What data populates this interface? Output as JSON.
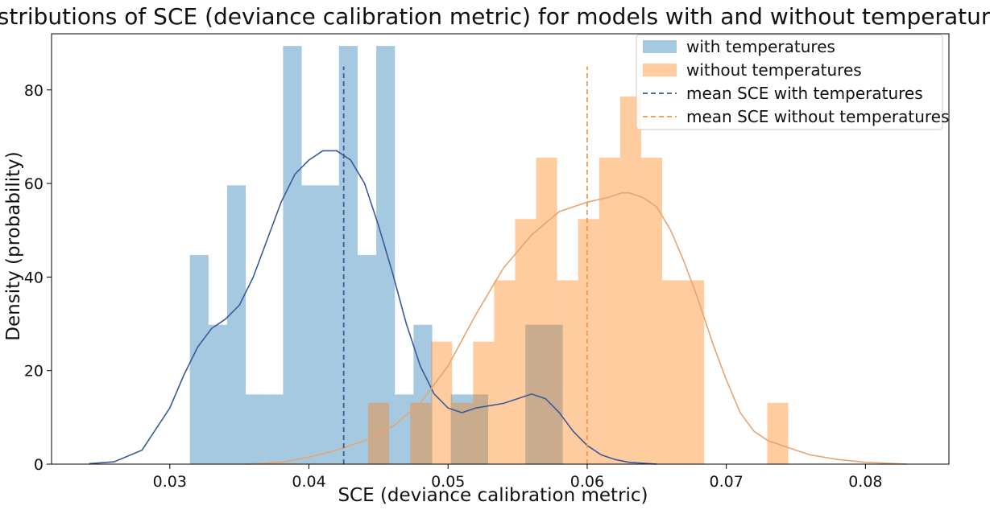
{
  "chart_data": {
    "type": "bar",
    "title": "Distributions of SCE (deviance calibration metric) for models with and without temperatures",
    "xlabel": "SCE (deviance calibration metric)",
    "ylabel": "Density (probability)",
    "xlim": [
      0.0215,
      0.086
    ],
    "ylim": [
      0,
      92
    ],
    "xticks": [
      0.03,
      0.04,
      0.05,
      0.06,
      0.07,
      0.08
    ],
    "xtick_labels": [
      "0.03",
      "0.04",
      "0.05",
      "0.06",
      "0.07",
      "0.08"
    ],
    "yticks": [
      0,
      20,
      40,
      60,
      80
    ],
    "ytick_labels": [
      "0",
      "20",
      "40",
      "60",
      "80"
    ],
    "grid": false,
    "legend_position": "top-right",
    "series": [
      {
        "name": "with temperatures",
        "kind": "histogram",
        "color": "#1f77b4",
        "alpha": 0.4,
        "bins": [
          {
            "x0": 0.03144,
            "x1": 0.03278,
            "density": 44.7
          },
          {
            "x0": 0.03278,
            "x1": 0.03412,
            "density": 29.8
          },
          {
            "x0": 0.03412,
            "x1": 0.03546,
            "density": 59.6
          },
          {
            "x0": 0.03546,
            "x1": 0.0368,
            "density": 14.9
          },
          {
            "x0": 0.0368,
            "x1": 0.03814,
            "density": 14.9
          },
          {
            "x0": 0.03814,
            "x1": 0.03948,
            "density": 89.4
          },
          {
            "x0": 0.03948,
            "x1": 0.04082,
            "density": 59.6
          },
          {
            "x0": 0.04082,
            "x1": 0.04216,
            "density": 59.6
          },
          {
            "x0": 0.04216,
            "x1": 0.0435,
            "density": 89.4
          },
          {
            "x0": 0.0435,
            "x1": 0.04484,
            "density": 44.7
          },
          {
            "x0": 0.04484,
            "x1": 0.04618,
            "density": 89.4
          },
          {
            "x0": 0.04618,
            "x1": 0.04752,
            "density": 14.9
          },
          {
            "x0": 0.04752,
            "x1": 0.04886,
            "density": 29.8
          },
          {
            "x0": 0.04886,
            "x1": 0.0502,
            "density": 0
          },
          {
            "x0": 0.0502,
            "x1": 0.05154,
            "density": 14.9
          },
          {
            "x0": 0.05154,
            "x1": 0.05288,
            "density": 14.9
          },
          {
            "x0": 0.05288,
            "x1": 0.05422,
            "density": 0
          },
          {
            "x0": 0.05422,
            "x1": 0.05556,
            "density": 0
          },
          {
            "x0": 0.05556,
            "x1": 0.0569,
            "density": 29.8
          },
          {
            "x0": 0.0569,
            "x1": 0.05824,
            "density": 29.8
          }
        ]
      },
      {
        "name": "without temperatures",
        "kind": "histogram",
        "color": "#ff7f0e",
        "alpha": 0.4,
        "bins": [
          {
            "x0": 0.04425,
            "x1": 0.04576,
            "density": 13.1
          },
          {
            "x0": 0.04576,
            "x1": 0.04727,
            "density": 0
          },
          {
            "x0": 0.04727,
            "x1": 0.04878,
            "density": 13.1
          },
          {
            "x0": 0.04878,
            "x1": 0.05029,
            "density": 26.2
          },
          {
            "x0": 0.05029,
            "x1": 0.0518,
            "density": 13.1
          },
          {
            "x0": 0.0518,
            "x1": 0.05331,
            "density": 26.2
          },
          {
            "x0": 0.05331,
            "x1": 0.05482,
            "density": 39.3
          },
          {
            "x0": 0.05482,
            "x1": 0.05633,
            "density": 52.4
          },
          {
            "x0": 0.05633,
            "x1": 0.05784,
            "density": 65.5
          },
          {
            "x0": 0.05784,
            "x1": 0.05935,
            "density": 39.3
          },
          {
            "x0": 0.05935,
            "x1": 0.06086,
            "density": 52.4
          },
          {
            "x0": 0.06086,
            "x1": 0.06237,
            "density": 65.5
          },
          {
            "x0": 0.06237,
            "x1": 0.06388,
            "density": 78.6
          },
          {
            "x0": 0.06388,
            "x1": 0.06539,
            "density": 65.5
          },
          {
            "x0": 0.06539,
            "x1": 0.0669,
            "density": 39.3
          },
          {
            "x0": 0.0669,
            "x1": 0.06841,
            "density": 39.3
          },
          {
            "x0": 0.06841,
            "x1": 0.06992,
            "density": 0
          },
          {
            "x0": 0.06992,
            "x1": 0.07143,
            "density": 0
          },
          {
            "x0": 0.07143,
            "x1": 0.07294,
            "density": 0
          },
          {
            "x0": 0.07294,
            "x1": 0.07445,
            "density": 13.1
          }
        ]
      },
      {
        "name": "mean SCE with temperatures",
        "kind": "vline",
        "color": "#3c5a9a",
        "style": "dashed",
        "x": 0.0425,
        "y_range": [
          0,
          85
        ]
      },
      {
        "name": "mean SCE without temperatures",
        "kind": "vline",
        "color": "#ee9a52",
        "style": "dashed",
        "x": 0.06,
        "y_range": [
          0,
          85
        ]
      },
      {
        "name": "KDE with temperatures",
        "kind": "line",
        "color": "#3c5a9a",
        "points": [
          [
            0.0242,
            0.1
          ],
          [
            0.026,
            0.5
          ],
          [
            0.028,
            3
          ],
          [
            0.03,
            12
          ],
          [
            0.031,
            19
          ],
          [
            0.032,
            25
          ],
          [
            0.033,
            29
          ],
          [
            0.034,
            31
          ],
          [
            0.035,
            34
          ],
          [
            0.036,
            40
          ],
          [
            0.037,
            48
          ],
          [
            0.038,
            56
          ],
          [
            0.039,
            62
          ],
          [
            0.04,
            65
          ],
          [
            0.041,
            67
          ],
          [
            0.042,
            67
          ],
          [
            0.043,
            65
          ],
          [
            0.044,
            60
          ],
          [
            0.045,
            51
          ],
          [
            0.046,
            41
          ],
          [
            0.047,
            30
          ],
          [
            0.048,
            21
          ],
          [
            0.049,
            15
          ],
          [
            0.05,
            12
          ],
          [
            0.051,
            11
          ],
          [
            0.052,
            12
          ],
          [
            0.053,
            12.5
          ],
          [
            0.054,
            13
          ],
          [
            0.055,
            14
          ],
          [
            0.056,
            15
          ],
          [
            0.057,
            14
          ],
          [
            0.058,
            11
          ],
          [
            0.059,
            7
          ],
          [
            0.06,
            4
          ],
          [
            0.061,
            2
          ],
          [
            0.062,
            1
          ],
          [
            0.063,
            0.4
          ],
          [
            0.0645,
            0.1
          ],
          [
            0.065,
            0
          ]
        ]
      },
      {
        "name": "KDE without temperatures",
        "kind": "line",
        "color": "#e8a570",
        "points": [
          [
            0.0355,
            0
          ],
          [
            0.038,
            0.4
          ],
          [
            0.04,
            1.5
          ],
          [
            0.042,
            3
          ],
          [
            0.044,
            5
          ],
          [
            0.046,
            8
          ],
          [
            0.048,
            13
          ],
          [
            0.05,
            21
          ],
          [
            0.052,
            32
          ],
          [
            0.054,
            42
          ],
          [
            0.056,
            49
          ],
          [
            0.058,
            54
          ],
          [
            0.06,
            56
          ],
          [
            0.0615,
            57
          ],
          [
            0.0625,
            58
          ],
          [
            0.063,
            58
          ],
          [
            0.064,
            57
          ],
          [
            0.065,
            55
          ],
          [
            0.066,
            50
          ],
          [
            0.067,
            43
          ],
          [
            0.068,
            35
          ],
          [
            0.069,
            26
          ],
          [
            0.07,
            18
          ],
          [
            0.071,
            11
          ],
          [
            0.072,
            7
          ],
          [
            0.073,
            5
          ],
          [
            0.074,
            4
          ],
          [
            0.075,
            3
          ],
          [
            0.076,
            2
          ],
          [
            0.078,
            1
          ],
          [
            0.08,
            0.4
          ],
          [
            0.083,
            0
          ]
        ]
      }
    ]
  }
}
